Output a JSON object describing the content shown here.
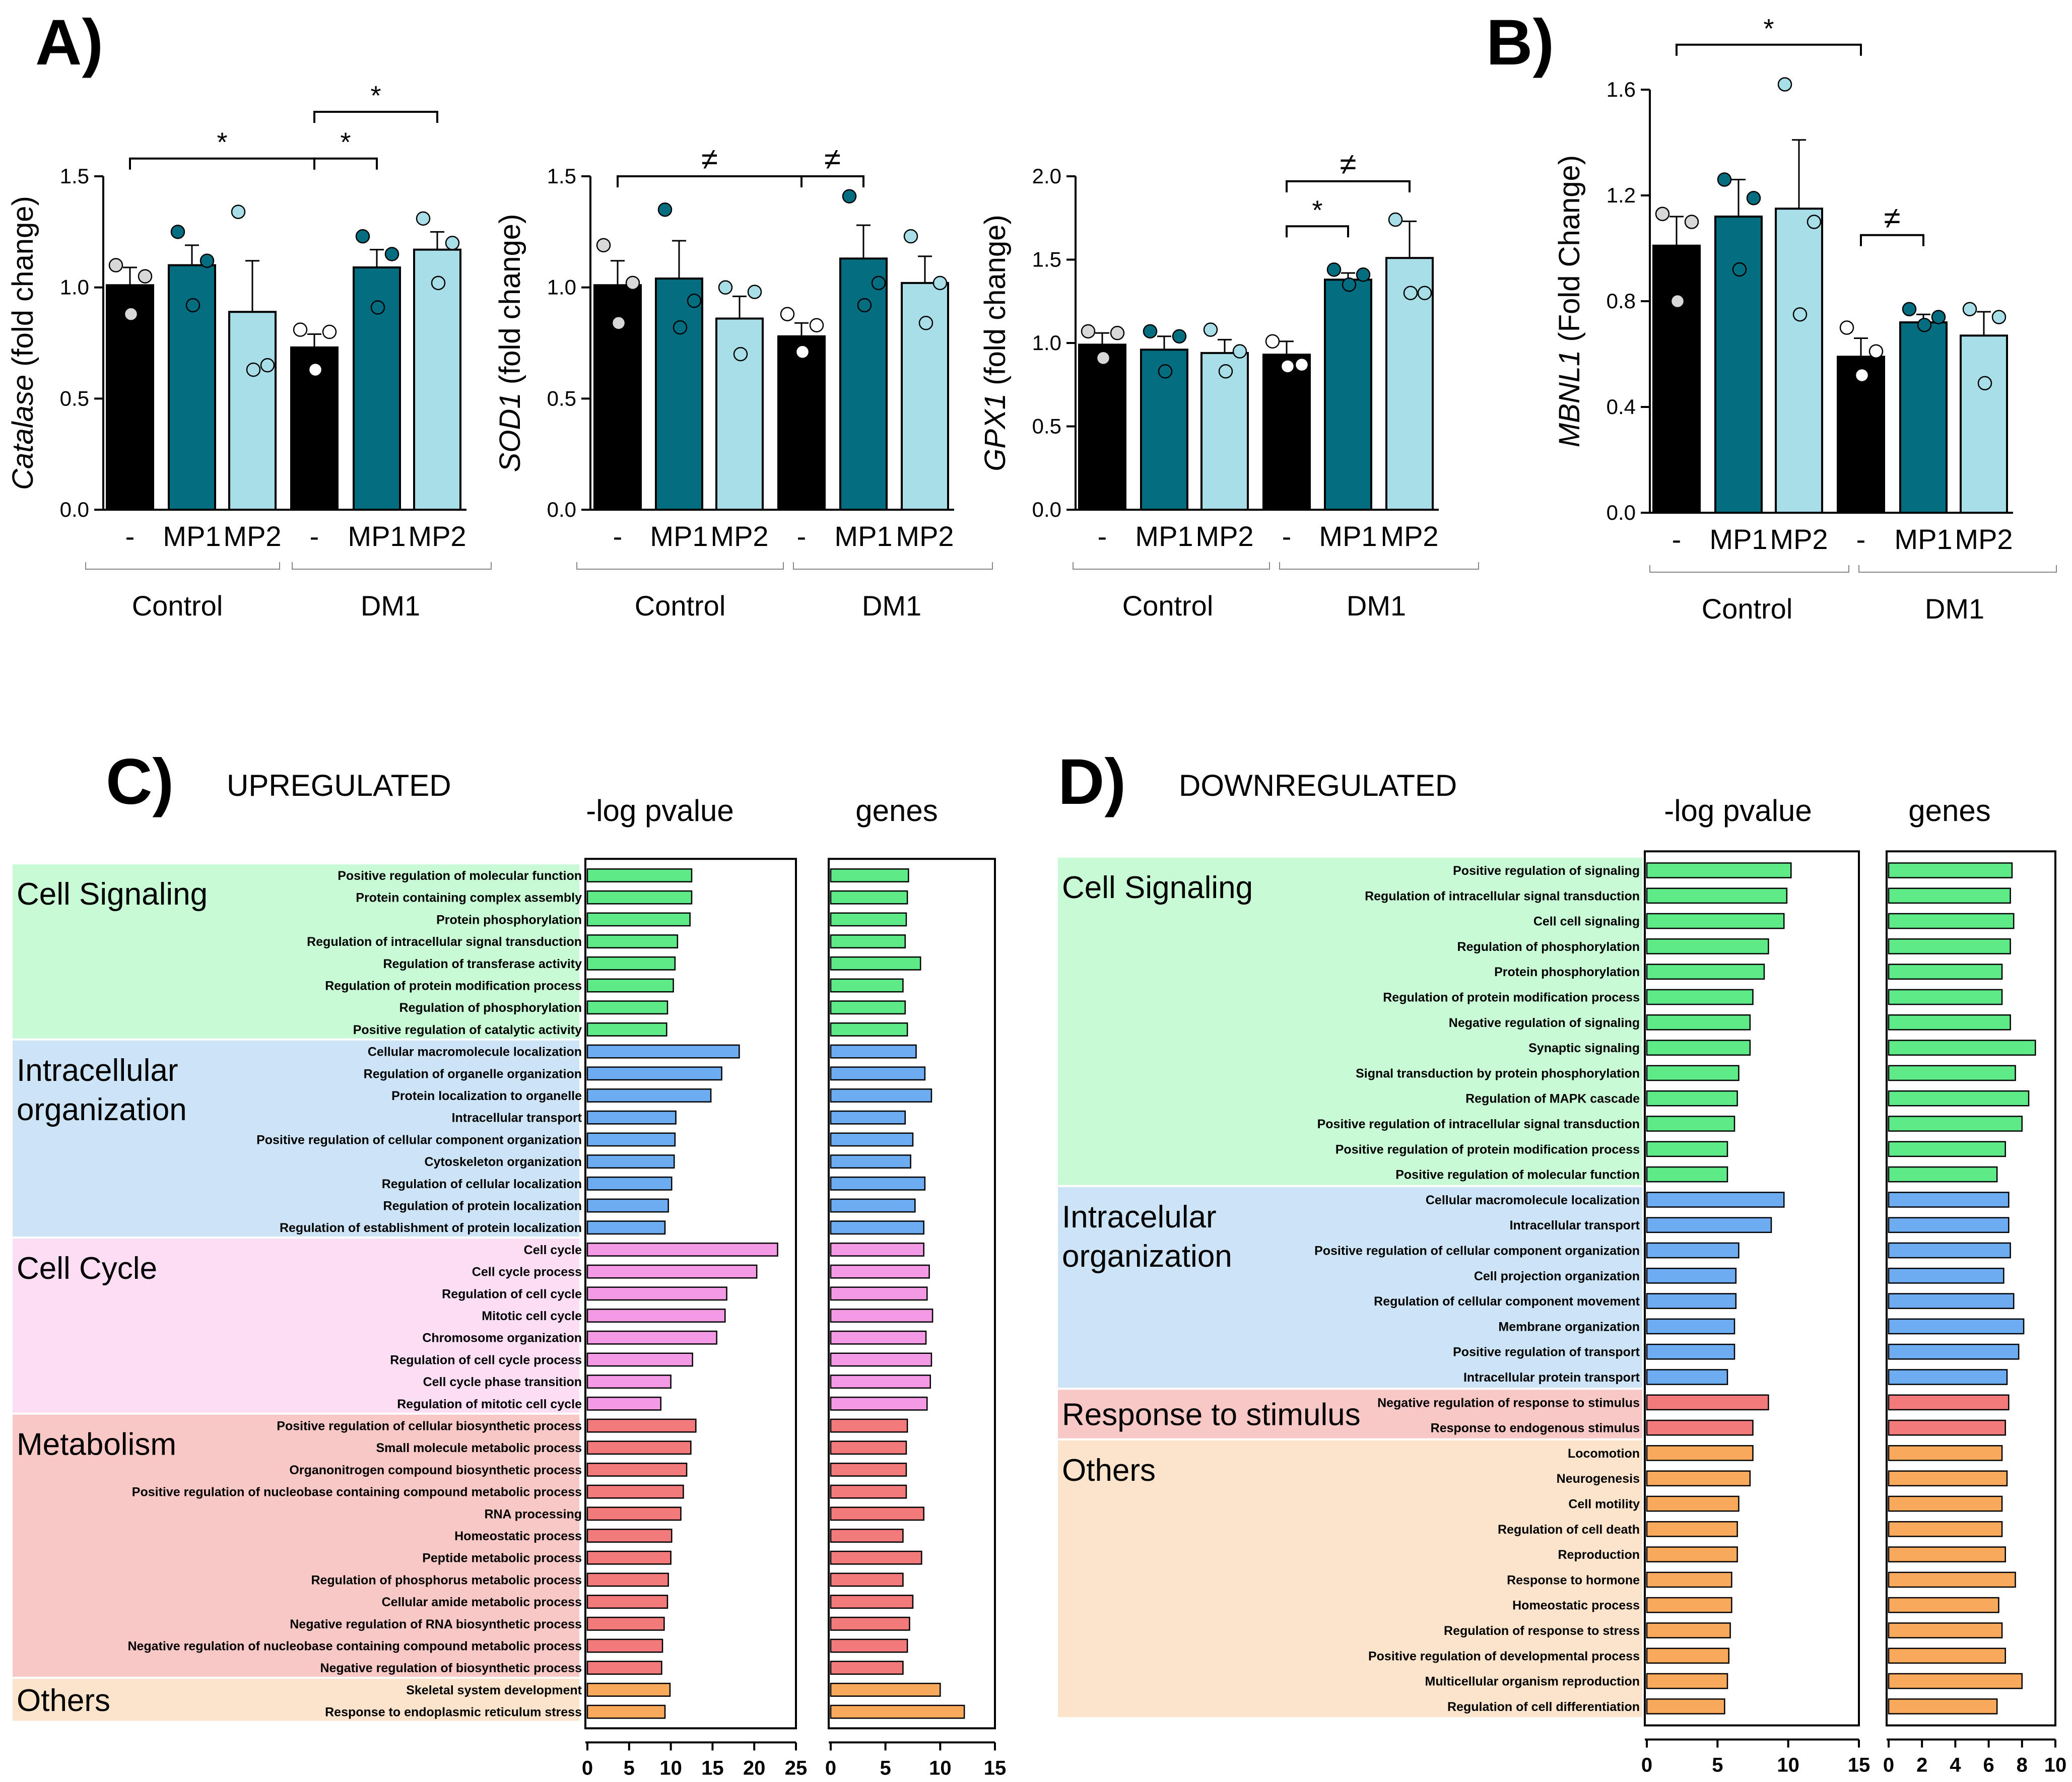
{
  "colors": {
    "black": "#000000",
    "mp1": "#046E80",
    "mp2": "#A7DEE8",
    "dot_ctrl": "#D8D8D8",
    "dot_dm1": "#FFFFFF",
    "cell_signaling": "#C8FAD6",
    "intracellular": "#CDE4F7",
    "cell_cycle": "#FBDDF4",
    "metabolism": "#F8C8C6",
    "response": "#F8C8C6",
    "others": "#FBE4CB",
    "bar_green": "#5EEA86",
    "bar_blue": "#6EACF2",
    "bar_pink": "#F49AE4",
    "bar_red": "#F27A7A",
    "bar_orange": "#F8A95C"
  },
  "panel_labels": {
    "a": "A)",
    "b": "B)",
    "c": "C)",
    "d": "D)"
  },
  "chart_data": [
    {
      "type": "bar",
      "panel": "A",
      "ylabel_gene": "Catalase",
      "ylabel_rest": "(fold change)",
      "ylim": [
        0,
        1.5
      ],
      "yticks": [
        "0.0",
        "0.5",
        "1.0",
        "1.5"
      ],
      "categories": [
        "-",
        "MP1",
        "MP2",
        "-",
        "MP1",
        "MP2"
      ],
      "groups": [
        "Control",
        "DM1"
      ],
      "values": [
        1.01,
        1.1,
        0.89,
        0.73,
        1.09,
        1.17
      ],
      "errors": [
        0.08,
        0.09,
        0.23,
        0.06,
        0.08,
        0.08
      ],
      "points": [
        [
          1.1,
          1.05,
          0.88
        ],
        [
          1.25,
          1.12,
          0.92
        ],
        [
          1.34,
          0.65,
          0.63
        ],
        [
          0.81,
          0.8,
          0.63
        ],
        [
          1.23,
          1.15,
          0.91
        ],
        [
          1.31,
          1.2,
          1.02
        ]
      ],
      "annotations": [
        {
          "text": "*",
          "from": 0,
          "to": 3,
          "level": 1.58
        },
        {
          "text": "*",
          "from": 3,
          "to": 4,
          "level": 1.58
        },
        {
          "text": "*",
          "from": 3,
          "to": 5,
          "level": 1.79
        }
      ]
    },
    {
      "type": "bar",
      "panel": "A",
      "ylabel_gene": "SOD1",
      "ylabel_rest": "(fold change)",
      "ylim": [
        0,
        1.5
      ],
      "yticks": [
        "0.0",
        "0.5",
        "1.0",
        "1.5"
      ],
      "categories": [
        "-",
        "MP1",
        "MP2",
        "-",
        "MP1",
        "MP2"
      ],
      "groups": [
        "Control",
        "DM1"
      ],
      "values": [
        1.01,
        1.04,
        0.86,
        0.78,
        1.13,
        1.02
      ],
      "errors": [
        0.11,
        0.17,
        0.1,
        0.06,
        0.15,
        0.12
      ],
      "points": [
        [
          1.19,
          1.02,
          0.84
        ],
        [
          1.35,
          0.94,
          0.82
        ],
        [
          1.0,
          0.98,
          0.7
        ],
        [
          0.88,
          0.83,
          0.71
        ],
        [
          1.41,
          1.02,
          0.92
        ],
        [
          1.23,
          1.02,
          0.84
        ]
      ],
      "annotations": [
        {
          "text": "≠",
          "from": 0,
          "to": 3,
          "level": 1.5
        },
        {
          "text": "≠",
          "from": 3,
          "to": 4,
          "level": 1.5
        }
      ]
    },
    {
      "type": "bar",
      "panel": "A",
      "ylabel_gene": "GPX1",
      "ylabel_rest": "(fold change)",
      "ylim": [
        0,
        2.0
      ],
      "yticks": [
        "0.0",
        "0.5",
        "1.0",
        "1.5",
        "2.0"
      ],
      "categories": [
        "-",
        "MP1",
        "MP2",
        "-",
        "MP1",
        "MP2"
      ],
      "groups": [
        "Control",
        "DM1"
      ],
      "values": [
        0.99,
        0.96,
        0.94,
        0.93,
        1.38,
        1.51
      ],
      "errors": [
        0.07,
        0.08,
        0.08,
        0.08,
        0.04,
        0.22
      ],
      "points": [
        [
          1.07,
          1.06,
          0.91
        ],
        [
          1.07,
          1.04,
          0.83
        ],
        [
          1.08,
          0.95,
          0.83
        ],
        [
          1.01,
          0.87,
          0.86
        ],
        [
          1.44,
          1.41,
          1.35
        ],
        [
          1.74,
          1.3,
          1.3
        ]
      ],
      "annotations": [
        {
          "text": "*",
          "from": 3,
          "to": 4,
          "level": 1.7
        },
        {
          "text": "≠",
          "from": 3,
          "to": 5,
          "level": 1.97
        }
      ]
    },
    {
      "type": "bar",
      "panel": "B",
      "ylabel_gene": "MBNL1",
      "ylabel_rest": "(Fold Change)",
      "ylim": [
        0,
        1.6
      ],
      "yticks": [
        "0.0",
        "0.4",
        "0.8",
        "1.2",
        "1.6"
      ],
      "categories": [
        "-",
        "MP1",
        "MP2",
        "-",
        "MP1",
        "MP2"
      ],
      "groups": [
        "Control",
        "DM1"
      ],
      "values": [
        1.01,
        1.12,
        1.15,
        0.59,
        0.72,
        0.67
      ],
      "errors": [
        0.11,
        0.14,
        0.26,
        0.07,
        0.03,
        0.09
      ],
      "points": [
        [
          1.13,
          1.1,
          0.8
        ],
        [
          1.26,
          1.19,
          0.92
        ],
        [
          1.62,
          1.1,
          0.75
        ],
        [
          0.7,
          0.61,
          0.52
        ],
        [
          0.77,
          0.74,
          0.71
        ],
        [
          0.77,
          0.74,
          0.49
        ]
      ],
      "annotations": [
        {
          "text": "*",
          "from": 0,
          "to": 3,
          "level": 1.77
        },
        {
          "text": "≠",
          "from": 3,
          "to": 4,
          "level": 1.05
        }
      ]
    },
    {
      "type": "bar",
      "panel": "C",
      "orientation": "horizontal",
      "title": "UPREGULATED",
      "col1_label": "-log pvalue",
      "col2_label": "genes",
      "xlim1": [
        0,
        25
      ],
      "xticks1": [
        0,
        5,
        10,
        15,
        20,
        25
      ],
      "xlim2": [
        0,
        15
      ],
      "xticks2": [
        0,
        5,
        10,
        15
      ],
      "groups": [
        {
          "label": [
            "Cell Signaling"
          ],
          "color": "cell_signaling",
          "bar": "bar_green",
          "items": [
            {
              "name": "Positive regulation of molecular function",
              "p": 12.5,
              "g": 7.1
            },
            {
              "name": "Protein containing complex assembly",
              "p": 12.5,
              "g": 7.0
            },
            {
              "name": "Protein phosphorylation",
              "p": 12.3,
              "g": 6.9
            },
            {
              "name": "Regulation of intracellular signal transduction",
              "p": 10.8,
              "g": 6.8
            },
            {
              "name": "Regulation of transferase activity",
              "p": 10.5,
              "g": 8.2
            },
            {
              "name": "Regulation of protein modification process",
              "p": 10.3,
              "g": 6.6
            },
            {
              "name": "Regulation of phosphorylation",
              "p": 9.6,
              "g": 6.8
            },
            {
              "name": "Positive regulation of catalytic activity",
              "p": 9.5,
              "g": 7.0
            }
          ]
        },
        {
          "label": [
            "Intracellular",
            "organization"
          ],
          "color": "intracellular",
          "bar": "bar_blue",
          "items": [
            {
              "name": "Cellular macromolecule localization",
              "p": 18.2,
              "g": 7.8
            },
            {
              "name": "Regulation of organelle organization",
              "p": 16.1,
              "g": 8.6
            },
            {
              "name": "Protein localization to organelle",
              "p": 14.8,
              "g": 9.2
            },
            {
              "name": "Intracellular transport",
              "p": 10.6,
              "g": 6.8
            },
            {
              "name": "Positive regulation of cellular component organization",
              "p": 10.5,
              "g": 7.5
            },
            {
              "name": "Cytoskeleton organization",
              "p": 10.4,
              "g": 7.3
            },
            {
              "name": "Regulation of cellular localization",
              "p": 10.1,
              "g": 8.6
            },
            {
              "name": "Regulation of protein localization",
              "p": 9.7,
              "g": 7.7
            },
            {
              "name": "Regulation of establishment of protein localization",
              "p": 9.3,
              "g": 8.5
            }
          ]
        },
        {
          "label": [
            "Cell Cycle"
          ],
          "color": "cell_cycle",
          "bar": "bar_pink",
          "items": [
            {
              "name": "Cell cycle",
              "p": 22.8,
              "g": 8.5
            },
            {
              "name": "Cell cycle process",
              "p": 20.3,
              "g": 9.0
            },
            {
              "name": "Regulation of cell cycle",
              "p": 16.7,
              "g": 8.8
            },
            {
              "name": "Mitotic cell cycle",
              "p": 16.5,
              "g": 9.3
            },
            {
              "name": "Chromosome organization",
              "p": 15.5,
              "g": 8.7
            },
            {
              "name": "Regulation of cell cycle process",
              "p": 12.6,
              "g": 9.2
            },
            {
              "name": "Cell cycle phase transition",
              "p": 10.0,
              "g": 9.1
            },
            {
              "name": "Regulation of mitotic cell cycle",
              "p": 8.8,
              "g": 8.8
            }
          ]
        },
        {
          "label": [
            "Metabolism"
          ],
          "color": "metabolism",
          "bar": "bar_red",
          "items": [
            {
              "name": "Positive regulation of cellular biosynthetic process",
              "p": 13.0,
              "g": 7.0
            },
            {
              "name": "Small molecule metabolic process",
              "p": 12.4,
              "g": 6.9
            },
            {
              "name": "Organonitrogen compound biosynthetic process",
              "p": 11.9,
              "g": 6.9
            },
            {
              "name": "Positive regulation of nucleobase containing compound metabolic process",
              "p": 11.5,
              "g": 6.9
            },
            {
              "name": "RNA processing",
              "p": 11.2,
              "g": 8.5
            },
            {
              "name": "Homeostatic process",
              "p": 10.1,
              "g": 6.6
            },
            {
              "name": "Peptide metabolic process",
              "p": 10.0,
              "g": 8.3
            },
            {
              "name": "Regulation of phosphorus metabolic process",
              "p": 9.7,
              "g": 6.6
            },
            {
              "name": "Cellular amide metabolic process",
              "p": 9.6,
              "g": 7.5
            },
            {
              "name": "Negative regulation of RNA biosynthetic process",
              "p": 9.2,
              "g": 7.2
            },
            {
              "name": "Negative regulation of nucleobase containing compound metabolic process",
              "p": 9.0,
              "g": 7.0
            },
            {
              "name": "Negative regulation of biosynthetic process",
              "p": 8.9,
              "g": 6.6
            }
          ]
        },
        {
          "label": [
            "Others"
          ],
          "color": "others",
          "bar": "bar_orange",
          "items": [
            {
              "name": "Skeletal system development",
              "p": 9.9,
              "g": 10.0
            },
            {
              "name": "Response to endoplasmic reticulum stress",
              "p": 9.3,
              "g": 12.2
            }
          ]
        }
      ]
    },
    {
      "type": "bar",
      "panel": "D",
      "orientation": "horizontal",
      "title": "DOWNREGULATED",
      "col1_label": "-log pvalue",
      "col2_label": "genes",
      "xlim1": [
        0,
        15
      ],
      "xticks1": [
        0,
        5,
        10,
        15
      ],
      "xlim2": [
        0,
        10
      ],
      "xticks2": [
        0,
        2,
        4,
        6,
        8,
        10
      ],
      "groups": [
        {
          "label": [
            "Cell Signaling"
          ],
          "color": "cell_signaling",
          "bar": "bar_green",
          "items": [
            {
              "name": "Positive regulation of signaling",
              "p": 10.2,
              "g": 7.4
            },
            {
              "name": "Regulation of intracellular signal transduction",
              "p": 9.9,
              "g": 7.3
            },
            {
              "name": "Cell cell signaling",
              "p": 9.7,
              "g": 7.5
            },
            {
              "name": "Regulation of phosphorylation",
              "p": 8.6,
              "g": 7.3
            },
            {
              "name": "Protein phosphorylation",
              "p": 8.3,
              "g": 6.8
            },
            {
              "name": "Regulation of protein modification process",
              "p": 7.5,
              "g": 6.8
            },
            {
              "name": "Negative regulation of signaling",
              "p": 7.3,
              "g": 7.3
            },
            {
              "name": "Synaptic signaling",
              "p": 7.3,
              "g": 8.8
            },
            {
              "name": "Signal transduction by protein phosphorylation",
              "p": 6.5,
              "g": 7.6
            },
            {
              "name": "Regulation of MAPK cascade",
              "p": 6.4,
              "g": 8.4
            },
            {
              "name": "Positive regulation of intracellular signal transduction",
              "p": 6.2,
              "g": 8.0
            },
            {
              "name": "Positive regulation of protein modification process",
              "p": 5.7,
              "g": 7.0
            },
            {
              "name": "Positive regulation of molecular function",
              "p": 5.7,
              "g": 6.5
            }
          ]
        },
        {
          "label": [
            "Intracelular",
            "organization"
          ],
          "color": "intracellular",
          "bar": "bar_blue",
          "items": [
            {
              "name": "Cellular macromolecule localization",
              "p": 9.7,
              "g": 7.2
            },
            {
              "name": "Intracellular transport",
              "p": 8.8,
              "g": 7.2
            },
            {
              "name": "Positive regulation of cellular component organization",
              "p": 6.5,
              "g": 7.3
            },
            {
              "name": "Cell projection organization",
              "p": 6.3,
              "g": 6.9
            },
            {
              "name": "Regulation of cellular component movement",
              "p": 6.3,
              "g": 7.5
            },
            {
              "name": "Membrane organization",
              "p": 6.2,
              "g": 8.1
            },
            {
              "name": "Positive regulation of transport",
              "p": 6.2,
              "g": 7.8
            },
            {
              "name": "Intracellular protein transport",
              "p": 5.7,
              "g": 7.1
            }
          ]
        },
        {
          "label": [
            "Response to stimulus"
          ],
          "color": "response",
          "bar": "bar_red",
          "items": [
            {
              "name": "Negative regulation of response to stimulus",
              "p": 8.6,
              "g": 7.2
            },
            {
              "name": "Response to endogenous stimulus",
              "p": 7.5,
              "g": 7.0
            }
          ]
        },
        {
          "label": [
            "Others"
          ],
          "color": "others",
          "bar": "bar_orange",
          "items": [
            {
              "name": "Locomotion",
              "p": 7.5,
              "g": 6.8
            },
            {
              "name": "Neurogenesis",
              "p": 7.3,
              "g": 7.1
            },
            {
              "name": "Cell motility",
              "p": 6.5,
              "g": 6.8
            },
            {
              "name": "Regulation of cell death",
              "p": 6.4,
              "g": 6.8
            },
            {
              "name": "Reproduction",
              "p": 6.4,
              "g": 7.0
            },
            {
              "name": "Response to hormone",
              "p": 6.0,
              "g": 7.6
            },
            {
              "name": "Homeostatic process",
              "p": 6.0,
              "g": 6.6
            },
            {
              "name": "Regulation of response to stress",
              "p": 5.9,
              "g": 6.8
            },
            {
              "name": "Positive regulation of developmental process",
              "p": 5.8,
              "g": 7.0
            },
            {
              "name": "Multicellular organism reproduction",
              "p": 5.7,
              "g": 8.0
            },
            {
              "name": "Regulation of cell differentiation",
              "p": 5.5,
              "g": 6.5
            }
          ]
        }
      ]
    }
  ]
}
